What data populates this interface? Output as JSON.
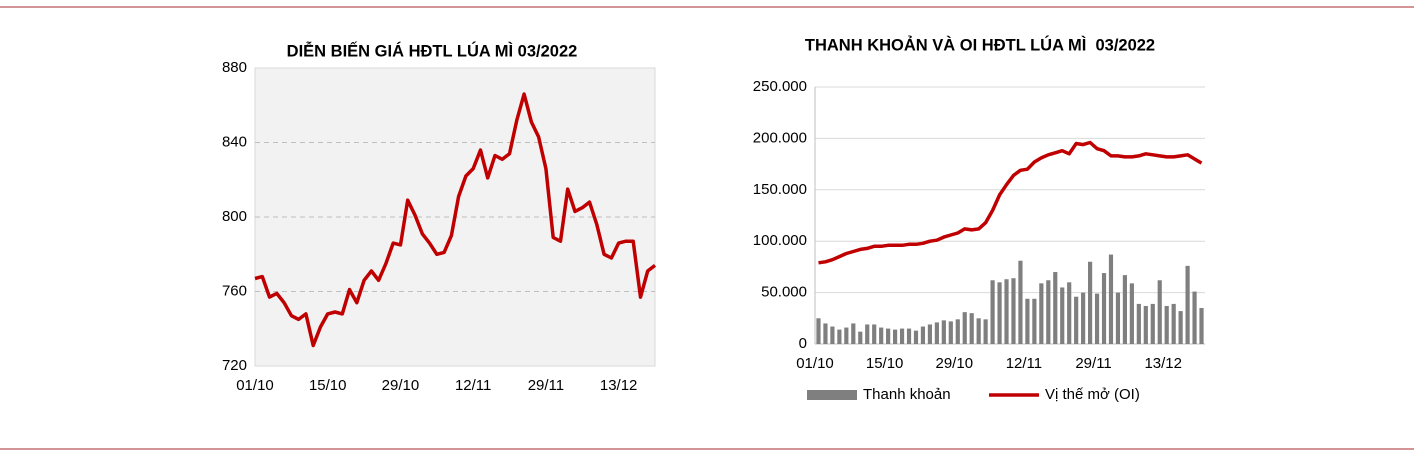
{
  "chart_data": [
    {
      "type": "line",
      "title": "DIỄN BIẾN GIÁ HĐTL LÚA MÌ 03/2022",
      "categories": [
        "01/10",
        null,
        null,
        null,
        null,
        null,
        null,
        null,
        null,
        null,
        "15/10",
        null,
        null,
        null,
        null,
        null,
        null,
        null,
        null,
        null,
        "29/10",
        null,
        null,
        null,
        null,
        null,
        null,
        null,
        null,
        null,
        "12/11",
        null,
        null,
        null,
        null,
        null,
        null,
        null,
        null,
        null,
        "29/11",
        null,
        null,
        null,
        null,
        null,
        null,
        null,
        null,
        null,
        "13/12",
        null,
        null,
        null,
        null,
        null
      ],
      "series": [
        {
          "name": null,
          "color": "#c00000",
          "values": [
            767,
            768,
            757,
            759,
            754,
            747,
            745,
            748,
            731,
            741,
            748,
            749,
            748,
            761,
            754,
            766,
            771,
            766,
            775,
            786,
            785,
            809,
            801,
            791,
            786,
            780,
            781,
            790,
            811,
            822,
            826,
            836,
            821,
            833,
            831,
            834,
            852,
            866,
            851,
            843,
            826,
            789,
            787,
            815,
            803,
            805,
            808,
            796,
            780,
            778,
            786,
            787,
            787,
            757,
            771,
            774
          ]
        }
      ],
      "ylim": [
        720,
        880
      ],
      "yticks": [
        720,
        760,
        800,
        840,
        880
      ],
      "grid": true
    },
    {
      "type": "bar-line",
      "title": "THANH KHOẢN VÀ OI HĐTL LÚA MÌ  03/2022",
      "categories": [
        "01/10",
        null,
        null,
        null,
        null,
        null,
        null,
        null,
        null,
        null,
        "15/10",
        null,
        null,
        null,
        null,
        null,
        null,
        null,
        null,
        null,
        "29/10",
        null,
        null,
        null,
        null,
        null,
        null,
        null,
        null,
        null,
        "12/11",
        null,
        null,
        null,
        null,
        null,
        null,
        null,
        null,
        null,
        "29/11",
        null,
        null,
        null,
        null,
        null,
        null,
        null,
        null,
        null,
        "13/12",
        null,
        null,
        null,
        null,
        null
      ],
      "series": [
        {
          "name": "Thanh khoản",
          "type": "bar",
          "color": "#7f7f7f",
          "values": [
            25000,
            20000,
            17000,
            14000,
            16000,
            20000,
            12000,
            19000,
            19000,
            16000,
            15000,
            14000,
            15000,
            15000,
            13000,
            17000,
            19000,
            21000,
            23000,
            22000,
            24000,
            31000,
            30000,
            25000,
            24000,
            62000,
            60000,
            63000,
            64000,
            81000,
            44000,
            44000,
            59000,
            62000,
            70000,
            55000,
            60000,
            46000,
            50000,
            80000,
            49000,
            69000,
            87000,
            50000,
            67000,
            59000,
            39000,
            37000,
            39000,
            62000,
            37000,
            39000,
            32000,
            76000,
            51000,
            35000
          ]
        },
        {
          "name": "Vị thế mở (OI)",
          "type": "line",
          "color": "#c00000",
          "values": [
            79000,
            80000,
            82000,
            85000,
            88000,
            90000,
            92000,
            93000,
            95000,
            95000,
            96000,
            96000,
            96000,
            97000,
            97000,
            98000,
            100000,
            101000,
            104000,
            106000,
            108000,
            112000,
            111000,
            112000,
            118000,
            130000,
            145000,
            155000,
            164000,
            169000,
            170000,
            177000,
            181000,
            184000,
            186000,
            188000,
            185000,
            195000,
            194000,
            196000,
            190000,
            188000,
            183000,
            183000,
            182000,
            182000,
            183000,
            185000,
            184000,
            183000,
            182000,
            182000,
            183000,
            184000,
            180000,
            176000
          ]
        }
      ],
      "ylim": [
        0,
        250000
      ],
      "yticks": [
        0,
        {
          "value": 50000,
          "label": "50.000"
        },
        {
          "value": 100000,
          "label": "100.000"
        },
        {
          "value": 150000,
          "label": "150.000"
        },
        {
          "value": 200000,
          "label": "200.000"
        },
        {
          "value": 250000,
          "label": "250.000"
        }
      ],
      "grid": true,
      "legend": "bottom"
    }
  ]
}
